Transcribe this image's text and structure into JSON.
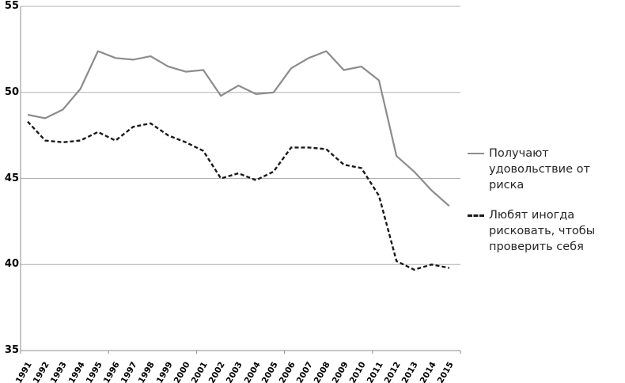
{
  "chart_data": {
    "type": "line",
    "title": "",
    "xlabel": "",
    "ylabel": "",
    "categories": [
      "1991",
      "1992",
      "1993",
      "1994",
      "1995",
      "1996",
      "1997",
      "1998",
      "1999",
      "2000",
      "2001",
      "2002",
      "2003",
      "2004",
      "2005",
      "2006",
      "2007",
      "2008",
      "2009",
      "2010",
      "2011",
      "2012",
      "2013",
      "2014",
      "2015"
    ],
    "series": [
      {
        "name": "Получают удовольствие от риска",
        "line_style": "solid",
        "color": "#8c8c8c",
        "values": [
          48.7,
          48.5,
          49.0,
          50.2,
          52.4,
          52.0,
          51.9,
          52.1,
          51.5,
          51.2,
          51.3,
          49.8,
          50.4,
          49.9,
          50.0,
          51.4,
          52.0,
          52.4,
          51.3,
          51.5,
          50.7,
          46.3,
          45.4,
          44.3,
          43.4
        ]
      },
      {
        "name": "Любят иногда рисковать, чтобы проверить себя",
        "line_style": "dashed",
        "color": "#1a1a1a",
        "values": [
          48.3,
          47.2,
          47.1,
          47.2,
          47.7,
          47.2,
          48.0,
          48.2,
          47.5,
          47.1,
          46.6,
          45.0,
          45.3,
          44.9,
          45.4,
          46.8,
          46.8,
          46.7,
          45.8,
          45.6,
          44.0,
          40.2,
          39.7,
          40.0,
          39.8
        ]
      }
    ],
    "ylim": [
      35,
      55
    ],
    "y_ticks": [
      35,
      40,
      45,
      50,
      55
    ],
    "grid": "horizontal",
    "gridline_color": "#b0b0b0",
    "axis_color": "#8c8c8c",
    "legend_position": "right"
  }
}
